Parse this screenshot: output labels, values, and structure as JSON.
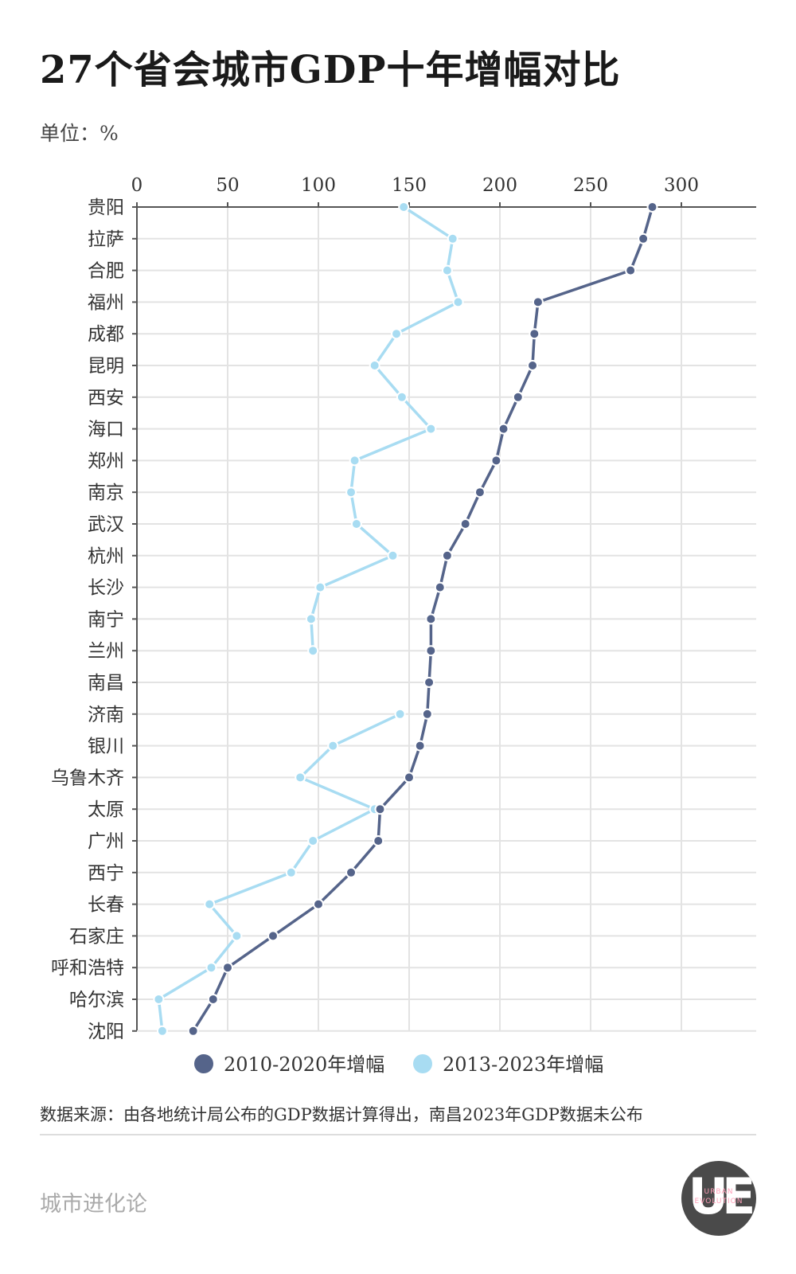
{
  "title": "27个省会城市GDP十年增幅对比",
  "unit_label": "单位：%",
  "source_note": "数据来源：由各地统计局公布的GDP数据计算得出，南昌2023年GDP数据未公布",
  "brand": "城市进化论",
  "logo": {
    "mark": "UE",
    "line1": "URBAN",
    "line2": "EVOLUTION"
  },
  "colors": {
    "series_2010": "#55648a",
    "series_2013": "#a8dcf2",
    "grid": "#e3e3e3",
    "axis": "#555555"
  },
  "chart_data": {
    "type": "line",
    "orientation": "horizontal",
    "x_axis_position": "top",
    "xlim": [
      0,
      340
    ],
    "x_ticks": [
      0,
      50,
      100,
      150,
      200,
      250,
      300
    ],
    "grid": true,
    "legend_position": "bottom",
    "categories": [
      "贵阳",
      "拉萨",
      "合肥",
      "福州",
      "成都",
      "昆明",
      "西安",
      "海口",
      "郑州",
      "南京",
      "武汉",
      "杭州",
      "长沙",
      "南宁",
      "兰州",
      "南昌",
      "济南",
      "银川",
      "乌鲁木齐",
      "太原",
      "广州",
      "西宁",
      "长春",
      "石家庄",
      "呼和浩特",
      "哈尔滨",
      "沈阳"
    ],
    "series": [
      {
        "name": "2010-2020年增幅",
        "color": "#55648a",
        "values": [
          284,
          279,
          272,
          221,
          219,
          218,
          210,
          202,
          198,
          189,
          181,
          171,
          167,
          162,
          162,
          161,
          160,
          156,
          150,
          134,
          133,
          118,
          100,
          75,
          50,
          42,
          31
        ]
      },
      {
        "name": "2013-2023年增幅",
        "color": "#a8dcf2",
        "values": [
          147,
          174,
          171,
          177,
          143,
          131,
          146,
          162,
          120,
          118,
          121,
          141,
          101,
          96,
          97,
          null,
          145,
          108,
          90,
          131,
          97,
          85,
          40,
          55,
          41,
          12,
          14
        ]
      }
    ]
  }
}
